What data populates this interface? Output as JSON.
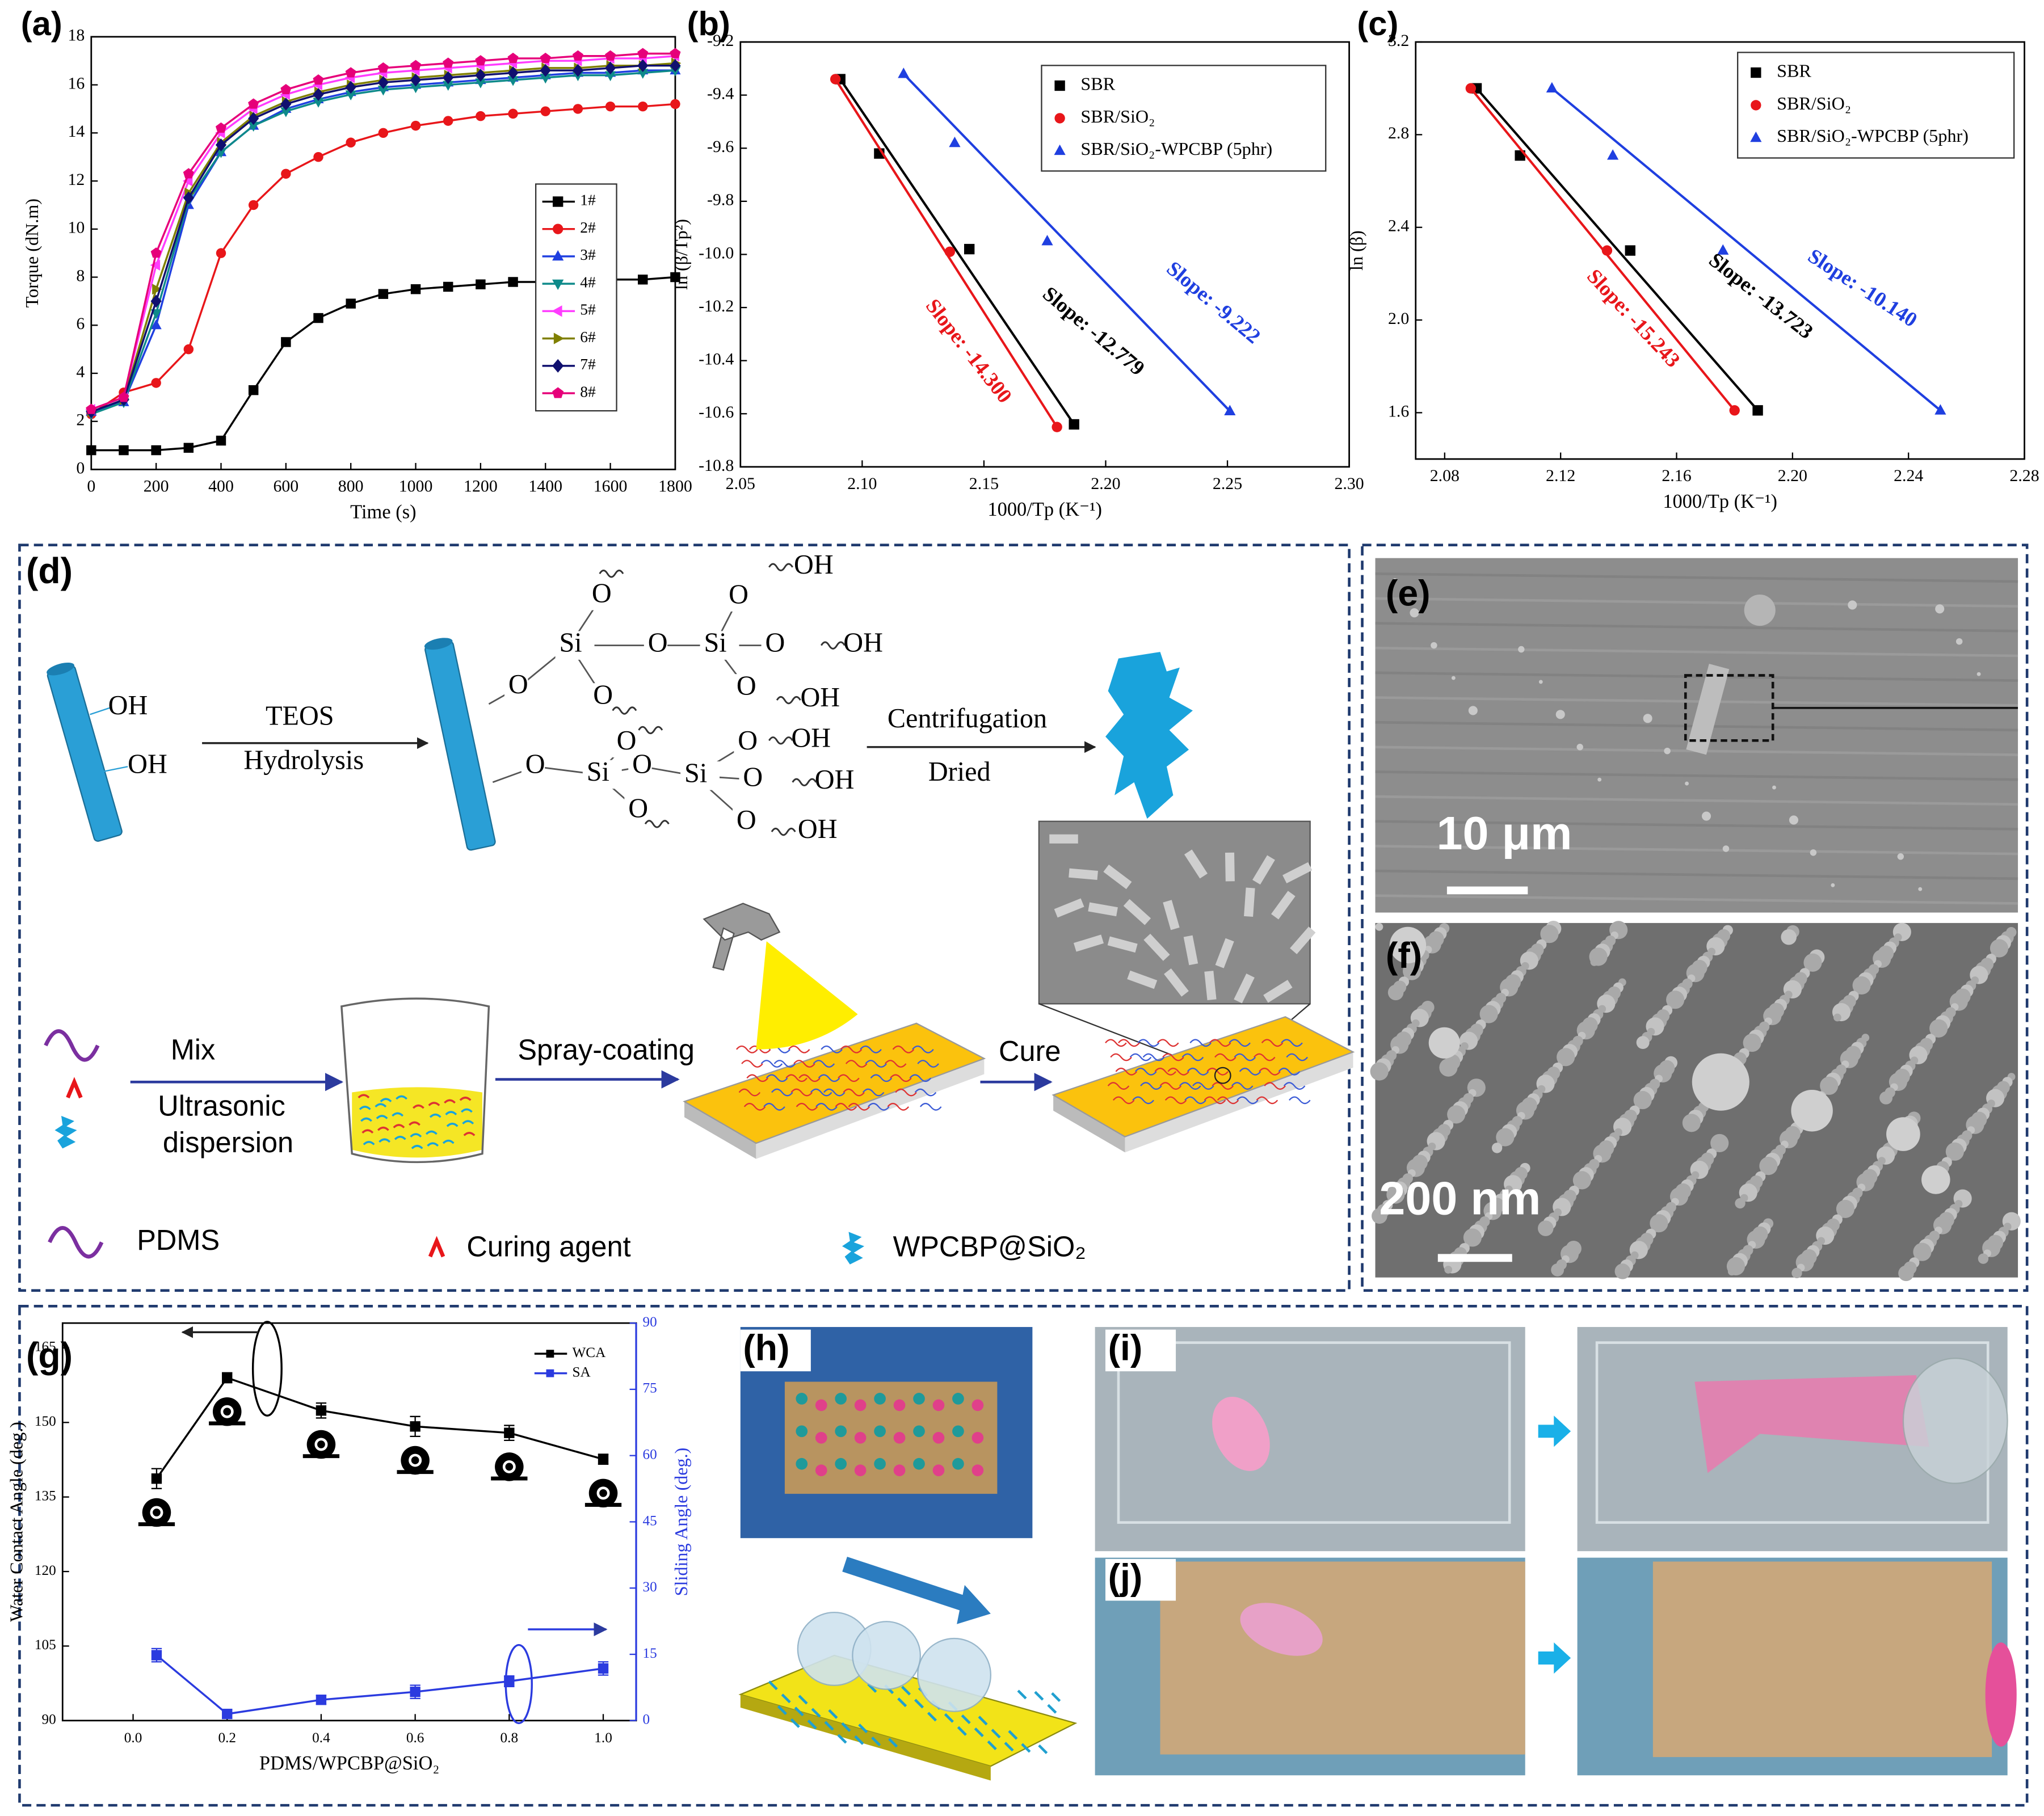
{
  "panel_labels": [
    "(a)",
    "(b)",
    "(c)",
    "(d)",
    "(e)",
    "(f)",
    "(g)",
    "(h)",
    "(i)",
    "(j)"
  ],
  "chart_data": [
    {
      "type": "line",
      "xlabel": "Time (s)",
      "ylabel": "Torque (dN.m)",
      "x": [
        0,
        100,
        200,
        300,
        400,
        500,
        600,
        700,
        800,
        900,
        1000,
        1100,
        1200,
        1300,
        1400,
        1500,
        1600,
        1700,
        1800
      ],
      "xlim": [
        0,
        1800
      ],
      "xticks": [
        0,
        200,
        400,
        600,
        800,
        1000,
        1200,
        1400,
        1600,
        1800
      ],
      "ylim": [
        0,
        18
      ],
      "yticks": [
        0,
        2,
        4,
        6,
        8,
        10,
        12,
        14,
        16,
        18
      ],
      "legend": "lower right",
      "series": [
        {
          "name": "1#",
          "color": "#000000",
          "marker": "square",
          "values": [
            0.8,
            0.8,
            0.8,
            0.9,
            1.2,
            3.3,
            5.3,
            6.3,
            6.9,
            7.3,
            7.5,
            7.6,
            7.7,
            7.8,
            7.8,
            7.9,
            7.9,
            7.9,
            8.0
          ]
        },
        {
          "name": "2#",
          "color": "#e8161a",
          "marker": "circle",
          "values": [
            2.3,
            3.2,
            3.6,
            5.0,
            9.0,
            11.0,
            12.3,
            13.0,
            13.6,
            14.0,
            14.3,
            14.5,
            14.7,
            14.8,
            14.9,
            15.0,
            15.1,
            15.1,
            15.2
          ]
        },
        {
          "name": "3#",
          "color": "#1f3fe0",
          "marker": "triangle",
          "values": [
            2.4,
            2.8,
            6.0,
            11.0,
            13.2,
            14.3,
            15.0,
            15.4,
            15.7,
            15.9,
            16.0,
            16.1,
            16.2,
            16.3,
            16.4,
            16.5,
            16.5,
            16.6,
            16.6
          ]
        },
        {
          "name": "4#",
          "color": "#0e8a8a",
          "marker": "triangle-down",
          "values": [
            2.3,
            2.8,
            6.5,
            11.2,
            13.2,
            14.3,
            14.9,
            15.3,
            15.6,
            15.8,
            15.9,
            16.0,
            16.1,
            16.2,
            16.3,
            16.4,
            16.4,
            16.5,
            16.6
          ]
        },
        {
          "name": "5#",
          "color": "#ff3cff",
          "marker": "triangle-left",
          "values": [
            2.5,
            3.0,
            8.5,
            12.0,
            14.0,
            15.0,
            15.6,
            16.0,
            16.3,
            16.5,
            16.6,
            16.7,
            16.8,
            16.9,
            17.0,
            17.0,
            17.1,
            17.1,
            17.2
          ]
        },
        {
          "name": "6#",
          "color": "#808000",
          "marker": "triangle-right",
          "values": [
            2.4,
            2.9,
            7.5,
            11.5,
            13.6,
            14.7,
            15.3,
            15.7,
            16.0,
            16.2,
            16.3,
            16.4,
            16.5,
            16.6,
            16.7,
            16.7,
            16.8,
            16.8,
            16.9
          ]
        },
        {
          "name": "7#",
          "color": "#10106f",
          "marker": "diamond",
          "values": [
            2.4,
            2.9,
            7.0,
            11.3,
            13.5,
            14.6,
            15.2,
            15.6,
            15.9,
            16.1,
            16.2,
            16.3,
            16.4,
            16.5,
            16.6,
            16.6,
            16.7,
            16.8,
            16.8
          ]
        },
        {
          "name": "8#",
          "color": "#e6007a",
          "marker": "pentagon",
          "values": [
            2.5,
            3.0,
            9.0,
            12.3,
            14.2,
            15.2,
            15.8,
            16.2,
            16.5,
            16.7,
            16.8,
            16.9,
            17.0,
            17.1,
            17.1,
            17.2,
            17.2,
            17.3,
            17.3
          ]
        }
      ]
    },
    {
      "type": "scatter",
      "xlabel": "1000/Tp (K⁻¹)",
      "ylabel": "ln (β/Tp²)",
      "xlim": [
        2.05,
        2.3
      ],
      "xticks": [
        2.05,
        {
          "value": 2.1,
          "label": "2.10"
        },
        2.15,
        {
          "value": 2.2,
          "label": "2.20"
        },
        2.25,
        {
          "value": 2.3,
          "label": "2.30"
        }
      ],
      "ylim": [
        -10.8,
        -9.2
      ],
      "yticks": [
        -9.2,
        -9.4,
        -9.6,
        -9.8,
        {
          "value": -10,
          "label": "-10.0"
        },
        -10.2,
        -10.4,
        -10.6,
        -10.8
      ],
      "legend": "upper right",
      "fit": true,
      "series": [
        {
          "name": "SBR",
          "color": "#000000",
          "marker": "square",
          "x": [
            2.091,
            2.107,
            2.144,
            2.187
          ],
          "y": [
            -9.34,
            -9.62,
            -9.98,
            -10.64
          ]
        },
        {
          "name": "SBR/SiO₂",
          "color": "#e8161a",
          "marker": "circle",
          "x": [
            2.089,
            2.136,
            2.18
          ],
          "y": [
            -9.34,
            -9.99,
            -10.65
          ]
        },
        {
          "name": "SBR/SiO₂-WPCBP (5phr)",
          "color": "#1f3fe0",
          "marker": "triangle",
          "x": [
            2.117,
            2.138,
            2.176,
            2.251
          ],
          "y": [
            -9.32,
            -9.58,
            -9.95,
            -10.59
          ]
        }
      ],
      "annotations": [
        {
          "text": "Slope: -14.300",
          "color": "#e8161a"
        },
        {
          "text": "Slope: -12.779",
          "color": "#000000"
        },
        {
          "text": "Slope: -9.222",
          "color": "#1f3fe0"
        }
      ]
    },
    {
      "type": "scatter",
      "xlabel": "1000/Tp (K⁻¹)",
      "ylabel": "ln (β)",
      "xlim": [
        2.07,
        2.28
      ],
      "xticks": [
        2.08,
        2.12,
        2.16,
        {
          "value": 2.2,
          "label": "2.20"
        },
        2.24,
        2.28
      ],
      "ylim": [
        1.4,
        3.2
      ],
      "yticks": [
        1.6,
        {
          "value": 2,
          "label": "2.0"
        },
        2.4,
        2.8,
        3.2
      ],
      "legend": "upper right",
      "fit": true,
      "series": [
        {
          "name": "SBR",
          "color": "#000000",
          "marker": "square",
          "x": [
            2.091,
            2.106,
            2.144,
            2.188
          ],
          "y": [
            3.0,
            2.71,
            2.3,
            1.61
          ]
        },
        {
          "name": "SBR/SiO₂",
          "color": "#e8161a",
          "marker": "circle",
          "x": [
            2.089,
            2.136,
            2.18
          ],
          "y": [
            3.0,
            2.3,
            1.61
          ]
        },
        {
          "name": "SBR/SiO₂-WPCBP (5phr)",
          "color": "#1f3fe0",
          "marker": "triangle",
          "x": [
            2.117,
            2.138,
            2.176,
            2.251
          ],
          "y": [
            3.0,
            2.71,
            2.3,
            1.61
          ]
        }
      ],
      "annotations": [
        {
          "text": "Slope: -15.243",
          "color": "#e8161a"
        },
        {
          "text": "Slope: -13.723",
          "color": "#000000"
        },
        {
          "text": "Slope: -10.140",
          "color": "#1f3fe0"
        }
      ]
    },
    {
      "type": "line",
      "xlabel": "PDMS/WPCBP@SiO₂",
      "ylabel": "Water Contact Angle (deg.)",
      "y2label": "Sliding Angle (deg.)",
      "x": [
        0.05,
        0.2,
        0.4,
        0.6,
        0.8,
        1
      ],
      "xlim": [
        -0.15,
        1.07
      ],
      "xticks": [
        {
          "value": 0,
          "label": "0.0"
        },
        0.2,
        0.4,
        0.6,
        0.8,
        {
          "value": 1,
          "label": "1.0"
        }
      ],
      "ylim": [
        90,
        170
      ],
      "yticks": [
        90,
        105,
        120,
        135,
        150,
        165
      ],
      "y2lim": [
        0,
        90
      ],
      "y2ticks": [
        0,
        15,
        30,
        45,
        60,
        75,
        90
      ],
      "legend": "upper right",
      "series": [
        {
          "name": "WCA",
          "color": "#000000",
          "marker": "square",
          "values": [
            138.7,
            159,
            152.4,
            149.2,
            147.9,
            142.6
          ],
          "errors": [
            2,
            1,
            1.5,
            2,
            1.5,
            1
          ]
        },
        {
          "name": "SA",
          "color": "#2b3bdf",
          "marker": "square",
          "axis": "y2",
          "values": [
            14.8,
            1.5,
            4.7,
            6.5,
            8.9,
            11.8
          ],
          "errors": [
            1.5,
            1,
            1,
            1.5,
            1.2,
            1.5
          ]
        }
      ]
    }
  ],
  "scheme": {
    "reactant_labels": [
      "OH",
      "OH"
    ],
    "step1": [
      "TEOS",
      "Hydrolysis"
    ],
    "molecule_labels": [
      "O",
      "Si",
      "O",
      "Si",
      "O",
      "OH",
      "O",
      "OH",
      "O",
      "O",
      "O",
      "OH",
      "O",
      "Si",
      "O",
      "Si",
      "O",
      "OH",
      "O",
      "O",
      "OH",
      "O",
      "O",
      "OH"
    ],
    "step2": [
      "Centrifugation",
      "Dried"
    ],
    "step3": [
      "Mix",
      "Ultrasonic",
      "dispersion"
    ],
    "step4": "Spray-coating",
    "step5": "Cure",
    "legend": [
      "PDMS",
      "Curing agent",
      "WPCBP@SiO₂"
    ]
  },
  "sem_scale_bars": [
    "10 μm",
    "200 nm"
  ]
}
